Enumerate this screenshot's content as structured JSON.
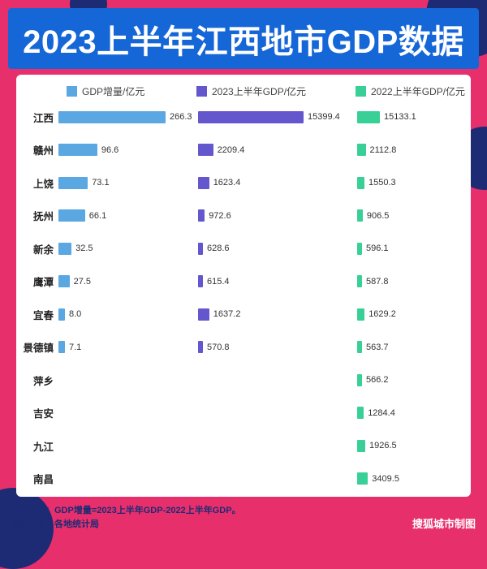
{
  "title": "2023上半年江西地市GDP数据",
  "chart_data": {
    "type": "bar",
    "orientation": "horizontal",
    "title": "2023上半年江西地市GDP数据",
    "unit": "亿元",
    "legend_position": "top",
    "categories": [
      "江西",
      "赣州",
      "上饶",
      "抚州",
      "新余",
      "鹰潭",
      "宜春",
      "景德镇",
      "萍乡",
      "吉安",
      "九江",
      "南昌"
    ],
    "series": [
      {
        "name": "GDP增量/亿元",
        "color": "#5ba7e2",
        "values": [
          "266.3",
          "96.6",
          "73.1",
          "66.1",
          "32.5",
          "27.5",
          "8.0",
          "7.1",
          null,
          null,
          null,
          null
        ]
      },
      {
        "name": "2023上半年GDP/亿元",
        "color": "#6457cd",
        "values": [
          "15399.4",
          "2209.4",
          "1623.4",
          "972.6",
          "628.6",
          "615.4",
          "1637.2",
          "570.8",
          null,
          null,
          null,
          null
        ]
      },
      {
        "name": "2022上半年GDP/亿元",
        "color": "#38d096",
        "values": [
          "15133.1",
          "2112.8",
          "1550.3",
          "906.5",
          "596.1",
          "587.8",
          "1629.2",
          "563.7",
          "566.2",
          "1284.4",
          "1926.5",
          "3409.5"
        ]
      }
    ]
  },
  "footer": {
    "note1": "数据说明：GDP增量=2023上半年GDP-2022上半年GDP。",
    "note2": "数据来源：各地统计局",
    "credit": "搜狐城市制图"
  },
  "colors": {
    "background": "#e72f6c",
    "banner": "#1566d6",
    "decor": "#1c2b74",
    "card": "#ffffff",
    "title_text": "#ffffff",
    "footer_text": "#1c2b74"
  }
}
